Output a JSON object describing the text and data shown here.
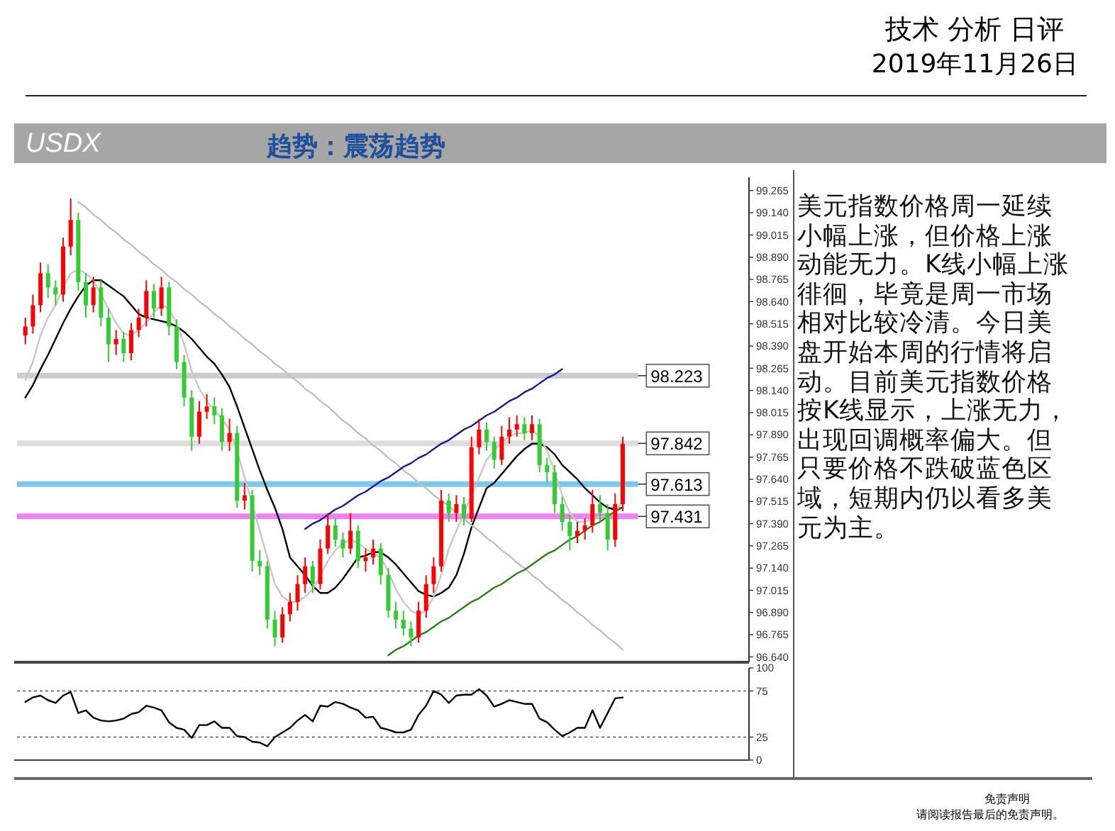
{
  "chart_data": [
    {
      "type": "candlestick",
      "title": "USDX",
      "subtitle": "趋势：震荡趋势",
      "annotations": [
        "技术 分析 日评",
        "2019年11月26日",
        "免责声明",
        "请阅读报告最后的免责声明。"
      ],
      "categories": [
        null,
        null,
        null,
        null,
        null,
        null,
        null,
        null,
        null,
        null,
        null,
        null,
        null,
        null,
        null,
        null,
        null,
        null,
        null,
        null,
        null,
        null,
        null,
        null,
        null,
        null,
        null,
        null,
        null,
        null,
        null,
        null,
        null,
        null,
        null,
        null,
        null,
        null,
        null,
        null,
        null,
        null,
        null,
        null,
        null,
        null,
        null,
        null,
        null,
        null,
        null,
        null,
        null,
        null,
        null,
        null,
        null,
        null,
        null,
        null,
        null,
        null,
        null,
        null,
        null,
        null,
        null,
        null,
        null,
        null,
        null,
        null,
        null,
        null,
        null,
        null,
        null,
        null,
        null,
        null
      ],
      "ohlc": [
        [
          98.45,
          98.55,
          98.4,
          98.5
        ],
        [
          98.5,
          98.68,
          98.46,
          98.62
        ],
        [
          98.62,
          98.86,
          98.58,
          98.8
        ],
        [
          98.8,
          98.85,
          98.66,
          98.72
        ],
        [
          98.72,
          98.76,
          98.62,
          98.68
        ],
        [
          98.68,
          99.0,
          98.64,
          98.95
        ],
        [
          98.95,
          99.22,
          98.9,
          99.1
        ],
        [
          99.1,
          99.14,
          98.7,
          98.75
        ],
        [
          98.75,
          98.8,
          98.55,
          98.62
        ],
        [
          98.62,
          98.78,
          98.58,
          98.72
        ],
        [
          98.72,
          98.76,
          98.5,
          98.55
        ],
        [
          98.55,
          98.6,
          98.3,
          98.4
        ],
        [
          98.4,
          98.48,
          98.34,
          98.43
        ],
        [
          98.43,
          98.47,
          98.3,
          98.35
        ],
        [
          98.35,
          98.52,
          98.31,
          98.48
        ],
        [
          98.48,
          98.6,
          98.44,
          98.55
        ],
        [
          98.55,
          98.76,
          98.5,
          98.7
        ],
        [
          98.7,
          98.74,
          98.55,
          98.6
        ],
        [
          98.6,
          98.78,
          98.56,
          98.72
        ],
        [
          98.72,
          98.75,
          98.45,
          98.5
        ],
        [
          98.5,
          98.54,
          98.26,
          98.3
        ],
        [
          98.3,
          98.34,
          98.05,
          98.1
        ],
        [
          98.1,
          98.14,
          97.8,
          97.88
        ],
        [
          97.88,
          98.08,
          97.84,
          98.02
        ],
        [
          98.02,
          98.12,
          97.98,
          98.05
        ],
        [
          98.05,
          98.1,
          97.95,
          98.0
        ],
        [
          98.0,
          98.04,
          97.8,
          97.85
        ],
        [
          97.85,
          97.98,
          97.8,
          97.9
        ],
        [
          97.9,
          97.94,
          97.48,
          97.52
        ],
        [
          97.52,
          97.62,
          97.47,
          97.55
        ],
        [
          97.55,
          97.58,
          97.12,
          97.18
        ],
        [
          97.18,
          97.24,
          97.1,
          97.15
        ],
        [
          97.15,
          97.18,
          96.8,
          96.85
        ],
        [
          96.85,
          96.9,
          96.7,
          96.75
        ],
        [
          96.75,
          96.92,
          96.72,
          96.88
        ],
        [
          96.88,
          97.0,
          96.84,
          96.95
        ],
        [
          96.95,
          97.1,
          96.9,
          97.05
        ],
        [
          97.05,
          97.2,
          97.0,
          97.15
        ],
        [
          97.15,
          97.18,
          97.0,
          97.05
        ],
        [
          97.05,
          97.3,
          97.02,
          97.25
        ],
        [
          97.25,
          97.45,
          97.22,
          97.38
        ],
        [
          97.38,
          97.42,
          97.26,
          97.3
        ],
        [
          97.3,
          97.34,
          97.2,
          97.25
        ],
        [
          97.25,
          97.45,
          97.22,
          97.35
        ],
        [
          97.35,
          97.38,
          97.14,
          97.18
        ],
        [
          97.18,
          97.25,
          97.12,
          97.2
        ],
        [
          97.2,
          97.3,
          97.16,
          97.25
        ],
        [
          97.25,
          97.28,
          97.05,
          97.1
        ],
        [
          97.1,
          97.14,
          96.86,
          96.9
        ],
        [
          96.9,
          96.95,
          96.8,
          96.85
        ],
        [
          96.85,
          96.9,
          96.76,
          96.8
        ],
        [
          96.8,
          96.84,
          96.7,
          96.75
        ],
        [
          96.75,
          96.95,
          96.72,
          96.9
        ],
        [
          96.9,
          97.1,
          96.86,
          97.05
        ],
        [
          97.05,
          97.2,
          97.0,
          97.15
        ],
        [
          97.15,
          97.58,
          97.12,
          97.52
        ],
        [
          97.52,
          97.56,
          97.4,
          97.45
        ],
        [
          97.45,
          97.55,
          97.4,
          97.5
        ],
        [
          97.5,
          97.54,
          97.38,
          97.42
        ],
        [
          97.42,
          97.88,
          97.4,
          97.82
        ],
        [
          97.82,
          97.98,
          97.78,
          97.92
        ],
        [
          97.92,
          97.96,
          97.8,
          97.85
        ],
        [
          97.85,
          97.88,
          97.7,
          97.75
        ],
        [
          97.75,
          97.94,
          97.72,
          97.88
        ],
        [
          97.88,
          97.99,
          97.84,
          97.92
        ],
        [
          97.92,
          98.0,
          97.88,
          97.95
        ],
        [
          97.95,
          97.99,
          97.86,
          97.9
        ],
        [
          97.9,
          98.0,
          97.86,
          97.95
        ],
        [
          97.95,
          97.98,
          97.68,
          97.72
        ],
        [
          97.72,
          97.76,
          97.62,
          97.68
        ],
        [
          97.68,
          97.72,
          97.45,
          97.5
        ],
        [
          97.5,
          97.54,
          97.35,
          97.4
        ],
        [
          97.4,
          97.44,
          97.24,
          97.32
        ],
        [
          97.32,
          97.4,
          97.28,
          97.35
        ],
        [
          97.35,
          97.42,
          97.3,
          97.38
        ],
        [
          97.38,
          97.58,
          97.34,
          97.5
        ],
        [
          97.5,
          97.55,
          97.4,
          97.45
        ],
        [
          97.45,
          97.5,
          97.24,
          97.3
        ],
        [
          97.3,
          97.56,
          97.26,
          97.5
        ],
        [
          97.5,
          97.88,
          97.46,
          97.84
        ]
      ],
      "colors": [
        "#ff0000",
        "#ff0000",
        "#ff0000",
        "#33cc33",
        "#33cc33",
        "#ff0000",
        "#ff0000",
        "#33cc33",
        "#33cc33",
        "#ff0000",
        "#33cc33",
        "#33cc33",
        "#ff0000",
        "#33cc33",
        "#ff0000",
        "#ff0000",
        "#ff0000",
        "#33cc33",
        "#ff0000",
        "#33cc33",
        "#33cc33",
        "#33cc33",
        "#33cc33",
        "#ff0000",
        "#ff0000",
        "#33cc33",
        "#33cc33",
        "#ff0000",
        "#33cc33",
        "#ff0000",
        "#33cc33",
        "#33cc33",
        "#33cc33",
        "#33cc33",
        "#ff0000",
        "#ff0000",
        "#ff0000",
        "#ff0000",
        "#33cc33",
        "#ff0000",
        "#ff0000",
        "#33cc33",
        "#33cc33",
        "#ff0000",
        "#33cc33",
        "#ff0000",
        "#ff0000",
        "#33cc33",
        "#33cc33",
        "#33cc33",
        "#33cc33",
        "#33cc33",
        "#ff0000",
        "#ff0000",
        "#ff0000",
        "#ff0000",
        "#33cc33",
        "#ff0000",
        "#33cc33",
        "#ff0000",
        "#ff0000",
        "#33cc33",
        "#33cc33",
        "#ff0000",
        "#ff0000",
        "#ff0000",
        "#33cc33",
        "#ff0000",
        "#33cc33",
        "#33cc33",
        "#33cc33",
        "#33cc33",
        "#33cc33",
        "#ff0000",
        "#ff0000",
        "#ff0000",
        "#33cc33",
        "#33cc33",
        "#ff0000",
        "#ff0000"
      ],
      "series": [
        {
          "type": "line",
          "color": "#000000",
          "values": [
            98.1,
            98.17,
            98.26,
            98.34,
            98.43,
            98.52,
            98.6,
            98.67,
            98.73,
            98.76,
            98.76,
            98.73,
            98.7,
            98.67,
            98.62,
            98.57,
            98.55,
            98.54,
            98.53,
            98.52,
            98.5,
            98.47,
            98.43,
            98.38,
            98.33,
            98.29,
            98.23,
            98.16,
            98.05,
            97.93,
            97.81,
            97.69,
            97.58,
            97.48,
            97.36,
            97.2,
            97.15,
            97.1,
            97.04,
            97.0,
            97.0,
            97.03,
            97.08,
            97.14,
            97.2,
            97.21,
            97.23,
            97.23,
            97.2,
            97.16,
            97.11,
            97.06,
            97.01,
            96.99,
            96.98,
            97.0,
            97.03,
            97.1,
            97.22,
            97.37,
            97.48,
            97.59,
            97.62,
            97.67,
            97.72,
            97.77,
            97.81,
            97.84,
            97.84,
            97.82,
            97.78,
            97.72,
            97.68,
            97.64,
            97.59,
            97.55,
            97.51,
            97.48,
            97.47,
            97.48
          ]
        },
        {
          "type": "line",
          "color": "#c8c8c8",
          "values": [
            98.2,
            98.3,
            98.45,
            98.55,
            98.62,
            98.72,
            98.8,
            98.82,
            98.8,
            98.76,
            98.68,
            98.6,
            98.52,
            98.46,
            98.45,
            98.48,
            98.52,
            98.58,
            98.62,
            98.6,
            98.52,
            98.4,
            98.25,
            98.15,
            98.08,
            98.03,
            97.98,
            97.92,
            97.8,
            97.65,
            97.5,
            97.35,
            97.2,
            97.05,
            96.98,
            96.95,
            96.95,
            96.98,
            97.02,
            97.1,
            97.18,
            97.24,
            97.28,
            97.3,
            97.28,
            97.25,
            97.22,
            97.2,
            97.12,
            97.02,
            96.95,
            96.9,
            96.88,
            96.9,
            96.98,
            97.1,
            97.25,
            97.35,
            97.45,
            97.55,
            97.65,
            97.75,
            97.8,
            97.85,
            97.88,
            97.9,
            97.9,
            97.92,
            97.88,
            97.8,
            97.68,
            97.55,
            97.45,
            97.4,
            97.4,
            97.42,
            97.43,
            97.42,
            97.45,
            97.52
          ]
        },
        {
          "type": "line",
          "color": "#c0c0c0",
          "values": [
            null,
            null,
            null,
            null,
            null,
            null,
            null,
            99.2,
            99.17,
            99.13,
            99.1,
            99.06,
            99.03,
            98.99,
            98.96,
            98.92,
            98.89,
            98.85,
            98.82,
            98.78,
            98.75,
            98.71,
            98.68,
            98.64,
            98.61,
            98.57,
            98.54,
            98.5,
            98.47,
            98.43,
            98.4,
            98.36,
            98.33,
            98.29,
            98.26,
            98.22,
            98.19,
            98.15,
            98.12,
            98.08,
            98.05,
            98.01,
            97.97,
            97.94,
            97.9,
            97.87,
            97.83,
            97.8,
            97.76,
            97.73,
            97.69,
            97.66,
            97.62,
            97.59,
            97.55,
            97.52,
            97.49,
            97.45,
            97.42,
            97.38,
            97.35,
            97.31,
            97.28,
            97.24,
            97.21,
            97.17,
            97.14,
            97.1,
            97.07,
            97.03,
            97.0,
            96.96,
            96.93,
            96.89,
            96.86,
            96.82,
            96.79,
            96.75,
            96.72,
            96.68
          ]
        },
        {
          "type": "line",
          "color": "#1a1a99",
          "values": [
            null,
            null,
            null,
            null,
            null,
            null,
            null,
            null,
            null,
            null,
            null,
            null,
            null,
            null,
            null,
            null,
            null,
            null,
            null,
            null,
            null,
            null,
            null,
            null,
            null,
            null,
            null,
            null,
            null,
            null,
            null,
            null,
            null,
            null,
            null,
            null,
            null,
            97.36,
            97.39,
            97.41,
            97.44,
            97.47,
            97.49,
            97.52,
            97.55,
            97.57,
            97.6,
            97.63,
            97.65,
            97.68,
            97.71,
            97.73,
            97.76,
            97.78,
            97.81,
            97.84,
            97.86,
            97.89,
            97.92,
            97.94,
            97.97,
            98.0,
            98.02,
            98.05,
            98.08,
            98.1,
            98.13,
            98.15,
            98.18,
            98.21,
            98.23,
            98.26,
            null,
            null,
            null,
            null,
            null,
            null,
            null,
            null
          ]
        },
        {
          "type": "line",
          "color": "#2e7d1e",
          "values": [
            null,
            null,
            null,
            null,
            null,
            null,
            null,
            null,
            null,
            null,
            null,
            null,
            null,
            null,
            null,
            null,
            null,
            null,
            null,
            null,
            null,
            null,
            null,
            null,
            null,
            null,
            null,
            null,
            null,
            null,
            null,
            null,
            null,
            null,
            null,
            null,
            null,
            null,
            null,
            null,
            null,
            null,
            null,
            null,
            null,
            null,
            null,
            null,
            96.65,
            96.68,
            96.7,
            96.73,
            96.76,
            96.78,
            96.81,
            96.84,
            96.86,
            96.89,
            96.92,
            96.95,
            96.97,
            97.0,
            97.03,
            97.05,
            97.08,
            97.11,
            97.13,
            97.16,
            97.19,
            97.22,
            97.24,
            97.27,
            97.3,
            97.32,
            97.35,
            97.38,
            97.4,
            97.43,
            97.46,
            97.48
          ]
        }
      ],
      "ref_lines": [
        {
          "axis": "y",
          "value": 98.223,
          "label": "98.223",
          "color": "#cccccc"
        },
        {
          "axis": "y",
          "value": 97.842,
          "label": "97.842",
          "color": "#dddddd"
        },
        {
          "axis": "y",
          "value": 97.613,
          "label": "97.613",
          "color": "#7ec8f0"
        },
        {
          "axis": "y",
          "value": 97.431,
          "label": "97.431",
          "color": "#ee82ee"
        }
      ],
      "ylim": [
        96.61,
        99.34
      ],
      "yticks": [
        {
          "value": 99.265,
          "label": "99.265"
        },
        {
          "value": 99.14,
          "label": "99.140"
        },
        {
          "value": 99.015,
          "label": "99.015"
        },
        {
          "value": 98.89,
          "label": "98.890"
        },
        {
          "value": 98.765,
          "label": "98.765"
        },
        {
          "value": 98.64,
          "label": "98.640"
        },
        {
          "value": 98.515,
          "label": "98.515"
        },
        {
          "value": 98.39,
          "label": "98.390"
        },
        {
          "value": 98.265,
          "label": "98.265"
        },
        {
          "value": 98.14,
          "label": "98.140"
        },
        {
          "value": 98.015,
          "label": "98.015"
        },
        {
          "value": 97.89,
          "label": "97.890"
        },
        {
          "value": 97.765,
          "label": "97.765"
        },
        {
          "value": 97.64,
          "label": "97.640"
        },
        {
          "value": 97.515,
          "label": "97.515"
        },
        {
          "value": 97.39,
          "label": "97.390"
        },
        {
          "value": 97.265,
          "label": "97.265"
        },
        {
          "value": 97.14,
          "label": "97.140"
        },
        {
          "value": 97.015,
          "label": "97.015"
        },
        {
          "value": 96.89,
          "label": "96.890"
        },
        {
          "value": 96.765,
          "label": "96.765"
        },
        {
          "value": 96.64,
          "label": "96.640"
        }
      ],
      "tick_labels": "y"
    },
    {
      "type": "line",
      "color": "#000000",
      "categories": [
        null,
        null,
        null,
        null,
        null,
        null,
        null,
        null,
        null,
        null,
        null,
        null,
        null,
        null,
        null,
        null,
        null,
        null,
        null,
        null,
        null,
        null,
        null,
        null,
        null,
        null,
        null,
        null,
        null,
        null,
        null,
        null,
        null,
        null,
        null,
        null,
        null,
        null,
        null,
        null,
        null,
        null,
        null,
        null,
        null,
        null,
        null,
        null,
        null,
        null,
        null,
        null,
        null,
        null,
        null,
        null,
        null,
        null,
        null,
        null,
        null,
        null,
        null,
        null,
        null,
        null,
        null,
        null,
        null,
        null,
        null,
        null,
        null,
        null,
        null,
        null,
        null,
        null,
        null,
        null
      ],
      "values": [
        63,
        68,
        70,
        65,
        62,
        70,
        74,
        51,
        54,
        46,
        43,
        42,
        43,
        45,
        50,
        52,
        59,
        57,
        54,
        41,
        35,
        33,
        24,
        38,
        38,
        42,
        35,
        35,
        26,
        25,
        20,
        19,
        15,
        25,
        30,
        35,
        43,
        49,
        42,
        59,
        58,
        63,
        61,
        57,
        54,
        46,
        47,
        35,
        33,
        30,
        30,
        33,
        49,
        59,
        75,
        71,
        62,
        70,
        71,
        71,
        77,
        70,
        58,
        61,
        65,
        63,
        61,
        61,
        45,
        41,
        33,
        26,
        30,
        35,
        35,
        54,
        35,
        51,
        67,
        68
      ],
      "ref_lines": [
        {
          "axis": "y",
          "value": 25,
          "line_style": "dotted"
        },
        {
          "axis": "y",
          "value": 75,
          "line_style": "dotted"
        }
      ],
      "ylim": [
        0,
        100
      ],
      "yticks": [
        0,
        25,
        75,
        100
      ],
      "tick_labels": "y"
    },
    {
      "type": "other",
      "annotations": [
        "美元指数价格周一延续小幅上涨，但价格上涨动能无力。K线小幅上涨徘徊，毕竟是周一市场相对比较冷清。今日美盘开始本周的行情将启动。目前美元指数价格按K线显示，上涨无力，出现回调概率偏大。但只要价格不跌破蓝色区域，短期内仍以看多美元为主。"
      ]
    }
  ]
}
